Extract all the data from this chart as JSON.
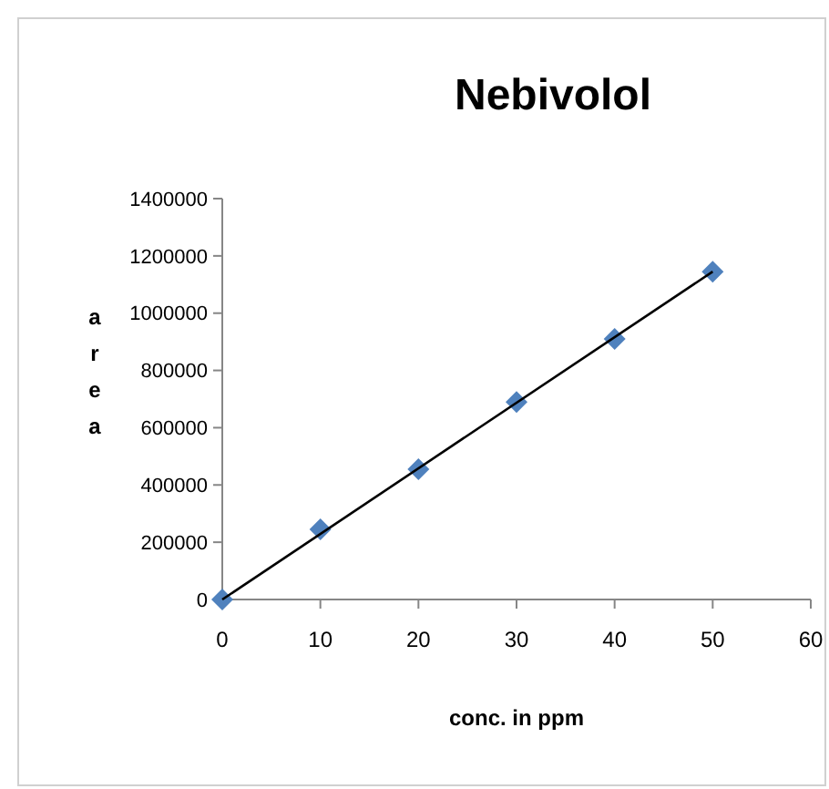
{
  "chart_data": {
    "type": "scatter",
    "title": "Nebivolol",
    "xlabel": "conc. in ppm",
    "ylabel": "area",
    "x": [
      0,
      10,
      20,
      30,
      40,
      50
    ],
    "grid": false,
    "series": [
      {
        "color": "#4f81bd",
        "marker": "diamond",
        "values": [
          0,
          245000,
          455000,
          690000,
          910000,
          1145000
        ]
      },
      {
        "type": "line",
        "color": "#000000",
        "x": [
          0,
          50
        ],
        "values": [
          0,
          1145000
        ],
        "marker": "none"
      }
    ],
    "xlim": [
      0,
      60
    ],
    "xticks": [
      0,
      10,
      20,
      30,
      40,
      50,
      60
    ],
    "ylim": [
      0,
      1400000
    ],
    "yticks": [
      0,
      200000,
      400000,
      600000,
      800000,
      1000000,
      1200000,
      1400000
    ]
  }
}
